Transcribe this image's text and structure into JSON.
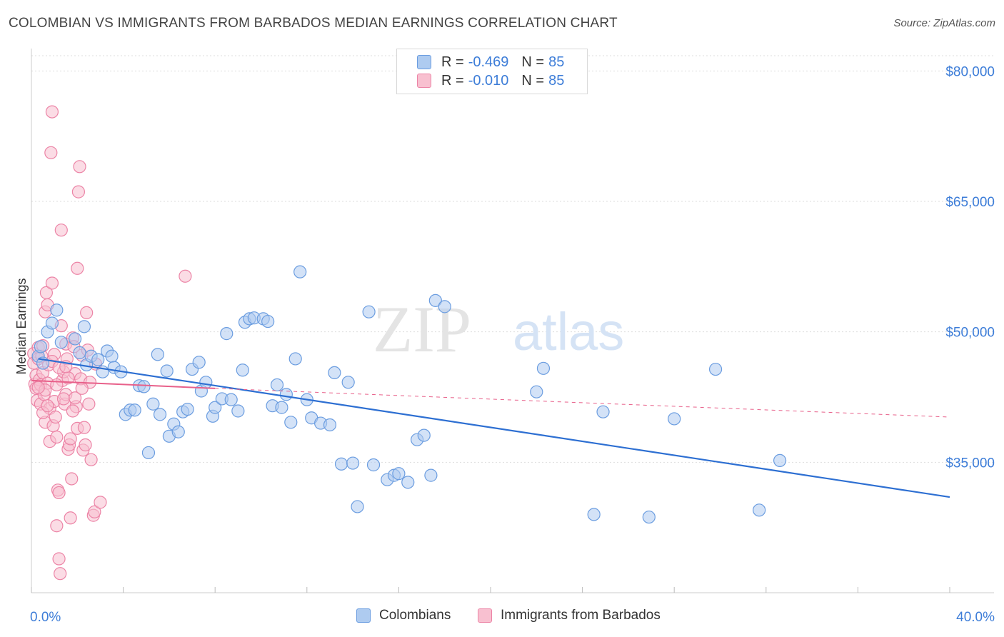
{
  "title": "COLOMBIAN VS IMMIGRANTS FROM BARBADOS MEDIAN EARNINGS CORRELATION CHART",
  "source": "Source: ZipAtlas.com",
  "watermark": {
    "zip": "ZIP",
    "atlas": "atlas"
  },
  "legend_top": {
    "rows": [
      {
        "r_label": "R =",
        "r_value": "-0.469",
        "n_label": "N =",
        "n_value": "85"
      },
      {
        "r_label": "R =",
        "r_value": "-0.010",
        "n_label": "N =",
        "n_value": "85"
      }
    ]
  },
  "legend_bottom": {
    "items": [
      {
        "label": "Colombians"
      },
      {
        "label": "Immigrants from Barbados"
      }
    ]
  },
  "colors": {
    "blue_fill": "#aecbf0",
    "blue_stroke": "#6b9de0",
    "blue_line": "#2d6fd2",
    "pink_fill": "#f8c0d0",
    "pink_stroke": "#ec84a6",
    "pink_line": "#e8608a",
    "grid": "#dddddd",
    "label": "#3d7dd8"
  },
  "chart_data": {
    "type": "scatter",
    "title": "COLOMBIAN VS IMMIGRANTS FROM BARBADOS MEDIAN EARNINGS CORRELATION CHART",
    "xlabel": "",
    "ylabel": "Median Earnings",
    "xlim": [
      0,
      40
    ],
    "ylim": [
      20000,
      82000
    ],
    "x_tick_labels": [
      "0.0%",
      "40.0%"
    ],
    "y_ticks": [
      35000,
      50000,
      65000,
      80000
    ],
    "y_tick_labels": [
      "$35,000",
      "$50,000",
      "$65,000",
      "$80,000"
    ],
    "grid": true,
    "legend_position": "top-center",
    "series": [
      {
        "name": "Colombians",
        "r": -0.469,
        "n": 85,
        "trend": {
          "x": [
            0.3,
            40
          ],
          "y": [
            46900,
            31000
          ]
        },
        "points": [
          [
            0.3,
            47200
          ],
          [
            0.4,
            48300
          ],
          [
            0.5,
            46400
          ],
          [
            0.7,
            50000
          ],
          [
            0.9,
            51000
          ],
          [
            1.1,
            52500
          ],
          [
            1.3,
            48800
          ],
          [
            1.9,
            49200
          ],
          [
            2.1,
            47600
          ],
          [
            2.3,
            50600
          ],
          [
            2.4,
            46200
          ],
          [
            2.6,
            47200
          ],
          [
            2.9,
            46800
          ],
          [
            3.1,
            45400
          ],
          [
            3.3,
            47800
          ],
          [
            3.5,
            47200
          ],
          [
            3.6,
            45900
          ],
          [
            3.9,
            45400
          ],
          [
            4.1,
            40500
          ],
          [
            4.3,
            41000
          ],
          [
            4.5,
            41000
          ],
          [
            4.7,
            43800
          ],
          [
            4.9,
            43700
          ],
          [
            5.1,
            36100
          ],
          [
            5.3,
            41700
          ],
          [
            5.5,
            47400
          ],
          [
            5.6,
            40500
          ],
          [
            5.9,
            45500
          ],
          [
            6.0,
            38000
          ],
          [
            6.2,
            39400
          ],
          [
            6.4,
            38500
          ],
          [
            6.6,
            40800
          ],
          [
            6.8,
            41100
          ],
          [
            7.0,
            45700
          ],
          [
            7.3,
            46500
          ],
          [
            7.4,
            43200
          ],
          [
            7.6,
            44200
          ],
          [
            7.9,
            40300
          ],
          [
            8.0,
            41300
          ],
          [
            8.3,
            42300
          ],
          [
            8.5,
            49800
          ],
          [
            8.7,
            42200
          ],
          [
            9.0,
            40900
          ],
          [
            9.2,
            45600
          ],
          [
            9.3,
            51100
          ],
          [
            9.5,
            51500
          ],
          [
            9.7,
            51600
          ],
          [
            10.1,
            51500
          ],
          [
            10.3,
            51200
          ],
          [
            10.5,
            41500
          ],
          [
            10.7,
            43900
          ],
          [
            10.9,
            41300
          ],
          [
            11.1,
            42800
          ],
          [
            11.3,
            39600
          ],
          [
            11.5,
            46900
          ],
          [
            11.7,
            56900
          ],
          [
            12.0,
            42200
          ],
          [
            12.2,
            40100
          ],
          [
            12.6,
            39500
          ],
          [
            13.0,
            39300
          ],
          [
            13.2,
            45300
          ],
          [
            13.5,
            34800
          ],
          [
            13.8,
            44200
          ],
          [
            14.0,
            34900
          ],
          [
            14.2,
            29900
          ],
          [
            14.7,
            52300
          ],
          [
            14.9,
            34700
          ],
          [
            15.5,
            33000
          ],
          [
            15.8,
            33500
          ],
          [
            16.0,
            33700
          ],
          [
            16.4,
            32700
          ],
          [
            16.8,
            37600
          ],
          [
            17.1,
            38100
          ],
          [
            17.4,
            33500
          ],
          [
            17.6,
            53600
          ],
          [
            18.0,
            52900
          ],
          [
            22.0,
            43100
          ],
          [
            22.3,
            45800
          ],
          [
            24.5,
            29000
          ],
          [
            24.9,
            40800
          ],
          [
            26.9,
            28700
          ],
          [
            29.8,
            45700
          ],
          [
            31.7,
            29500
          ],
          [
            32.6,
            35200
          ],
          [
            28.0,
            40000
          ]
        ]
      },
      {
        "name": "Immigrants from Barbados",
        "r": -0.01,
        "n": 85,
        "trend_solid": {
          "x": [
            0.0,
            8.0
          ],
          "y": [
            44400,
            43500
          ]
        },
        "trend_dashed": {
          "x": [
            8.0,
            40
          ],
          "y": [
            43500,
            40200
          ]
        },
        "points": [
          [
            0.1,
            47500
          ],
          [
            0.1,
            46400
          ],
          [
            0.15,
            44000
          ],
          [
            0.2,
            43500
          ],
          [
            0.2,
            45000
          ],
          [
            0.25,
            42100
          ],
          [
            0.3,
            48200
          ],
          [
            0.3,
            46900
          ],
          [
            0.35,
            44500
          ],
          [
            0.4,
            43900
          ],
          [
            0.4,
            41700
          ],
          [
            0.45,
            47200
          ],
          [
            0.5,
            48400
          ],
          [
            0.5,
            45300
          ],
          [
            0.55,
            42800
          ],
          [
            0.6,
            39600
          ],
          [
            0.6,
            52300
          ],
          [
            0.65,
            54500
          ],
          [
            0.7,
            53100
          ],
          [
            0.7,
            44100
          ],
          [
            0.75,
            46200
          ],
          [
            0.8,
            41200
          ],
          [
            0.8,
            37400
          ],
          [
            0.85,
            70600
          ],
          [
            0.9,
            75300
          ],
          [
            0.9,
            55600
          ],
          [
            0.95,
            39200
          ],
          [
            1.0,
            42000
          ],
          [
            1.0,
            47400
          ],
          [
            1.05,
            40200
          ],
          [
            1.1,
            37900
          ],
          [
            1.1,
            27700
          ],
          [
            1.15,
            31800
          ],
          [
            1.2,
            31500
          ],
          [
            1.2,
            23900
          ],
          [
            1.25,
            22200
          ],
          [
            1.3,
            61700
          ],
          [
            1.3,
            50700
          ],
          [
            1.35,
            44400
          ],
          [
            1.4,
            45400
          ],
          [
            1.45,
            41700
          ],
          [
            1.5,
            48600
          ],
          [
            1.5,
            42800
          ],
          [
            1.55,
            46900
          ],
          [
            1.6,
            36500
          ],
          [
            1.65,
            37000
          ],
          [
            1.7,
            37700
          ],
          [
            1.7,
            28600
          ],
          [
            1.75,
            33100
          ],
          [
            1.8,
            49300
          ],
          [
            1.85,
            48300
          ],
          [
            1.9,
            45200
          ],
          [
            1.95,
            41400
          ],
          [
            2.0,
            38900
          ],
          [
            2.0,
            57300
          ],
          [
            2.05,
            66100
          ],
          [
            2.1,
            69000
          ],
          [
            2.15,
            44600
          ],
          [
            2.2,
            47300
          ],
          [
            2.25,
            36400
          ],
          [
            2.3,
            39000
          ],
          [
            2.35,
            37000
          ],
          [
            2.4,
            52200
          ],
          [
            2.45,
            47900
          ],
          [
            2.5,
            41700
          ],
          [
            2.55,
            44200
          ],
          [
            2.6,
            35300
          ],
          [
            2.7,
            28900
          ],
          [
            2.75,
            29300
          ],
          [
            3.0,
            30400
          ],
          [
            6.7,
            56400
          ],
          [
            0.5,
            40700
          ],
          [
            0.6,
            43300
          ],
          [
            0.9,
            46600
          ],
          [
            1.2,
            45900
          ],
          [
            1.4,
            42300
          ],
          [
            1.6,
            44700
          ],
          [
            1.8,
            40900
          ],
          [
            0.3,
            43600
          ],
          [
            0.7,
            41500
          ],
          [
            1.1,
            43900
          ],
          [
            1.5,
            46000
          ],
          [
            1.9,
            42400
          ],
          [
            2.2,
            43500
          ],
          [
            2.8,
            46300
          ]
        ]
      }
    ]
  }
}
